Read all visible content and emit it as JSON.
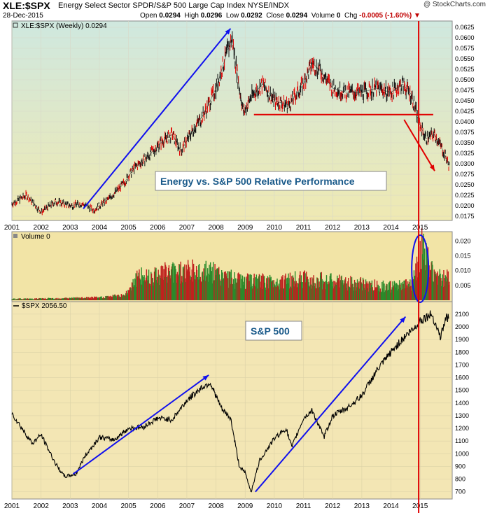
{
  "header": {
    "ticker": "XLE:$SPX",
    "description": "Energy Select Sector SPDR/S&P 500 Large Cap Index  NYSE/INDX",
    "date": "28-Dec-2015",
    "open_label": "Open",
    "open": "0.0294",
    "high_label": "High",
    "high": "0.0296",
    "low_label": "Low",
    "low": "0.0292",
    "close_label": "Close",
    "close": "0.0294",
    "volume_label": "Volume",
    "volume": "0",
    "chg_label": "Chg",
    "chg": "-0.0005 (-1.60%)",
    "brand": "@ StockCharts.com"
  },
  "colors": {
    "panel_top": "#cfe8df",
    "panel_bottom": "#efe9b2",
    "vol_bg": "#f2e4a6",
    "spx_bg": "#f3e6b4",
    "red": "#e00000",
    "blue": "#1010ee",
    "bar_red": "#c0201e",
    "bar_green": "#2a8a2a"
  },
  "chart_data": [
    {
      "type": "line",
      "panel": "XLE:$SPX (Weekly)",
      "legend": "XLE:$SPX (Weekly) 0.0294",
      "x": [
        2001.0,
        2001.5,
        2002.0,
        2002.5,
        2003.0,
        2003.4,
        2003.8,
        2004.3,
        2004.8,
        2005.2,
        2005.7,
        2006.1,
        2006.5,
        2006.8,
        2007.2,
        2007.6,
        2008.0,
        2008.4,
        2008.55,
        2008.8,
        2008.95,
        2009.2,
        2009.6,
        2010.0,
        2010.5,
        2011.0,
        2011.3,
        2011.6,
        2012.0,
        2012.5,
        2013.0,
        2013.5,
        2014.0,
        2014.4,
        2014.7,
        2014.95,
        2015.2,
        2015.5,
        2015.8,
        2016.0
      ],
      "values": [
        0.0205,
        0.0225,
        0.0185,
        0.021,
        0.02,
        0.0205,
        0.019,
        0.0215,
        0.025,
        0.029,
        0.032,
        0.035,
        0.037,
        0.033,
        0.038,
        0.042,
        0.048,
        0.057,
        0.06,
        0.048,
        0.042,
        0.046,
        0.049,
        0.045,
        0.044,
        0.049,
        0.054,
        0.052,
        0.048,
        0.047,
        0.047,
        0.048,
        0.047,
        0.049,
        0.0465,
        0.04,
        0.036,
        0.037,
        0.033,
        0.0294
      ],
      "ylim": [
        0.017,
        0.063
      ],
      "y_ticks": [
        "0.0625",
        "0.0600",
        "0.0575",
        "0.0550",
        "0.0525",
        "0.0500",
        "0.0475",
        "0.0450",
        "0.0425",
        "0.0400",
        "0.0375",
        "0.0350",
        "0.0325",
        "0.0300",
        "0.0275",
        "0.0250",
        "0.0225",
        "0.0200",
        "0.0175"
      ],
      "x_ticks": [
        "2001",
        "2002",
        "2003",
        "2004",
        "2005",
        "2006",
        "2007",
        "2008",
        "2009",
        "2010",
        "2011",
        "2012",
        "2013",
        "2014",
        "2015"
      ],
      "annotation": "Energy vs. S&P 500 Relative Performance",
      "support_level": 0.0417
    },
    {
      "type": "bar",
      "panel": "Volume",
      "legend": "Volume 0",
      "y_ticks": [
        "0.020",
        "0.015",
        "0.010",
        "0.005"
      ],
      "ylim": [
        0,
        0.022
      ],
      "x": [
        2001,
        2002,
        2003,
        2004,
        2004.9,
        2005.2,
        2006,
        2007,
        2008,
        2008.5,
        2009,
        2010,
        2011,
        2012,
        2013,
        2014,
        2014.7,
        2014.9,
        2015.05,
        2015.3,
        2015.6,
        2015.9
      ],
      "values": [
        0.0005,
        0.0006,
        0.0008,
        0.001,
        0.002,
        0.008,
        0.01,
        0.011,
        0.01,
        0.008,
        0.007,
        0.007,
        0.008,
        0.007,
        0.006,
        0.005,
        0.006,
        0.013,
        0.02,
        0.013,
        0.009,
        0.008
      ]
    },
    {
      "type": "line",
      "panel": "$SPX",
      "legend": "$SPX 2056.50",
      "x": [
        2001.0,
        2001.2,
        2001.7,
        2002.0,
        2002.5,
        2002.8,
        2003.2,
        2003.5,
        2004.0,
        2004.5,
        2005.0,
        2005.5,
        2006.0,
        2006.5,
        2007.0,
        2007.5,
        2007.8,
        2008.2,
        2008.5,
        2008.8,
        2009.0,
        2009.2,
        2009.5,
        2010.0,
        2010.4,
        2010.6,
        2011.0,
        2011.3,
        2011.7,
        2012.0,
        2012.5,
        2013.0,
        2013.5,
        2014.0,
        2014.5,
        2014.8,
        2015.0,
        2015.4,
        2015.7,
        2015.9,
        2016.0
      ],
      "values": [
        1320,
        1250,
        1080,
        1150,
        920,
        820,
        840,
        980,
        1130,
        1110,
        1200,
        1210,
        1280,
        1270,
        1420,
        1520,
        1560,
        1350,
        1280,
        900,
        850,
        700,
        950,
        1120,
        1200,
        1050,
        1280,
        1340,
        1130,
        1300,
        1360,
        1460,
        1650,
        1800,
        1930,
        1990,
        2050,
        2100,
        1920,
        2080,
        2056.5
      ],
      "ylim": [
        660,
        2160
      ],
      "y_ticks": [
        "2100",
        "2000",
        "1900",
        "1800",
        "1700",
        "1600",
        "1500",
        "1400",
        "1300",
        "1200",
        "1100",
        "1000",
        "900",
        "800",
        "700"
      ],
      "x_ticks": [
        "2001",
        "2002",
        "2003",
        "2004",
        "2005",
        "2006",
        "2007",
        "2008",
        "2009",
        "2010",
        "2011",
        "2012",
        "2013",
        "2014",
        "2015"
      ],
      "annotation": "S&P 500",
      "x_range": [
        2001.0,
        2016.1
      ]
    }
  ]
}
